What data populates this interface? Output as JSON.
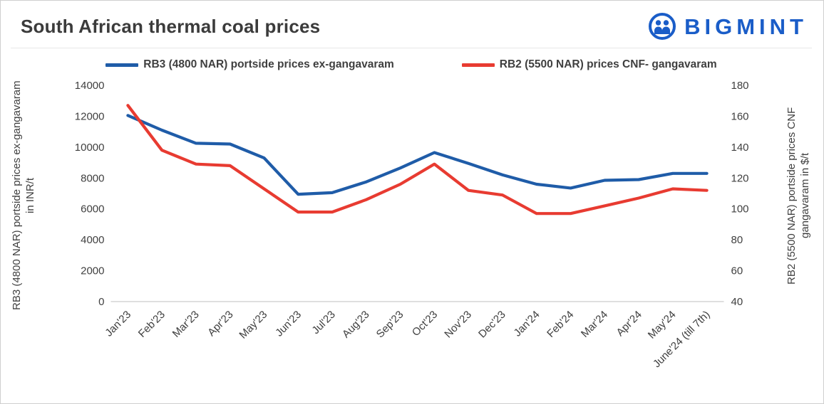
{
  "page": {
    "title": "South African thermal coal prices"
  },
  "logo": {
    "text": "BIGMINT",
    "color": "#1a5dc8"
  },
  "chart_data": {
    "type": "line",
    "title": "South African thermal coal prices",
    "legend_position": "top",
    "grid": false,
    "categories": [
      "Jan'23",
      "Feb'23",
      "Mar'23",
      "Apr'23",
      "May'23",
      "Jun'23",
      "Jul'23",
      "Aug'23",
      "Sep'23",
      "Oct'23",
      "Nov'23",
      "Dec'23",
      "Jan'24",
      "Feb'24",
      "Mar'24",
      "Apr'24",
      "May'24",
      "June'24 (till 7th)"
    ],
    "series": [
      {
        "name": "RB3 (4800 NAR) portside prices ex-gangavaram",
        "yaxis": "left",
        "color": "#1f5ca8",
        "values": [
          12050,
          11100,
          10250,
          10200,
          9300,
          6950,
          7050,
          7750,
          8650,
          9650,
          8950,
          8200,
          7600,
          7350,
          7850,
          7900,
          8300,
          8300
        ]
      },
      {
        "name": "RB2 (5500 NAR) prices CNF- gangavaram",
        "yaxis": "right",
        "color": "#e83b31",
        "values": [
          167,
          138,
          129,
          128,
          113,
          98,
          98,
          106,
          116,
          129,
          112,
          109,
          97,
          97,
          102,
          107,
          113,
          112
        ]
      }
    ],
    "left_axis": {
      "label": "RB3 (4800 NAR) portside prices ex-gangavaram in INR/t",
      "min": 0,
      "max": 14000,
      "step": 2000,
      "ticks": [
        0,
        2000,
        4000,
        6000,
        8000,
        10000,
        12000,
        14000
      ]
    },
    "right_axis": {
      "label": "RB2 (5500 NAR) portside prices CNF gangavaram in $/t",
      "min": 40,
      "max": 180,
      "step": 20,
      "ticks": [
        40,
        60,
        80,
        100,
        120,
        140,
        160,
        180
      ]
    }
  }
}
